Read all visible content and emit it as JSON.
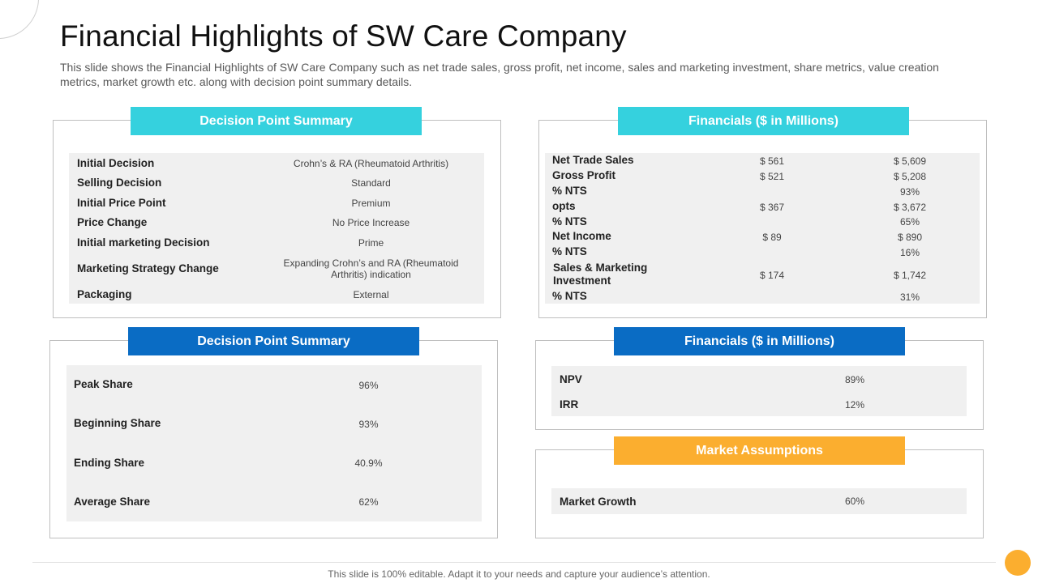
{
  "header": {
    "title": "Financial Highlights of SW Care Company",
    "subtitle": "This slide shows the Financial Highlights of SW Care Company such as net trade sales, gross profit, net income, sales and marketing investment, share metrics, value creation metrics, market growth etc. along with decision point summary details."
  },
  "decision_summary_top": {
    "heading": "Decision Point Summary",
    "rows": [
      {
        "label": "Initial Decision",
        "value": "Crohn’s & RA (Rheumatoid Arthritis)"
      },
      {
        "label": "Selling Decision",
        "value": "Standard"
      },
      {
        "label": "Initial Price Point",
        "value": "Premium"
      },
      {
        "label": "Price Change",
        "value": "No Price Increase"
      },
      {
        "label": "Initial marketing Decision",
        "value": "Prime"
      },
      {
        "label": "Marketing Strategy Change",
        "value": "Expanding Crohn’s and RA (Rheumatoid Arthritis) indication"
      },
      {
        "label": "Packaging",
        "value": "External"
      }
    ]
  },
  "financials_top": {
    "heading": "Financials ($ in Millions)",
    "rows": [
      {
        "label": "Net Trade Sales",
        "col1": "$ 561",
        "col2": "$ 5,609"
      },
      {
        "label": "Gross  Profit",
        "col1": "$ 521",
        "col2": "$ 5,208"
      },
      {
        "label": "% NTS",
        "col1": "",
        "col2": "93%"
      },
      {
        "label": "opts",
        "col1": "$ 367",
        "col2": "$ 3,672"
      },
      {
        "label": "% NTS",
        "col1": "",
        "col2": "65%"
      },
      {
        "label": "Net Income",
        "col1": "$ 89",
        "col2": "$ 890"
      },
      {
        "label": "% NTS",
        "col1": "",
        "col2": "16%"
      },
      {
        "label": "Sales & Marketing Investment",
        "col1": "$ 174",
        "col2": "$ 1,742"
      },
      {
        "label": "% NTS",
        "col1": "",
        "col2": "31%"
      }
    ]
  },
  "decision_summary_bottom": {
    "heading": "Decision Point Summary",
    "rows": [
      {
        "label": "Peak Share",
        "value": "96%"
      },
      {
        "label": "Beginning Share",
        "value": "93%"
      },
      {
        "label": "Ending Share",
        "value": "40.9%"
      },
      {
        "label": "Average Share",
        "value": "62%"
      }
    ]
  },
  "financials_bottom": {
    "heading": "Financials ($ in Millions)",
    "rows": [
      {
        "label": "NPV",
        "value": "89%"
      },
      {
        "label": "IRR",
        "value": "12%"
      }
    ]
  },
  "market_assumptions": {
    "heading": "Market Assumptions",
    "rows": [
      {
        "label": "Market Growth",
        "value": "60%"
      }
    ]
  },
  "footer": {
    "text": "This slide is 100% editable. Adapt it to your needs and capture your audience’s attention."
  },
  "colors": {
    "cyan": "#35d1de",
    "blue": "#0a6cc4",
    "orange": "#fbae2f"
  }
}
